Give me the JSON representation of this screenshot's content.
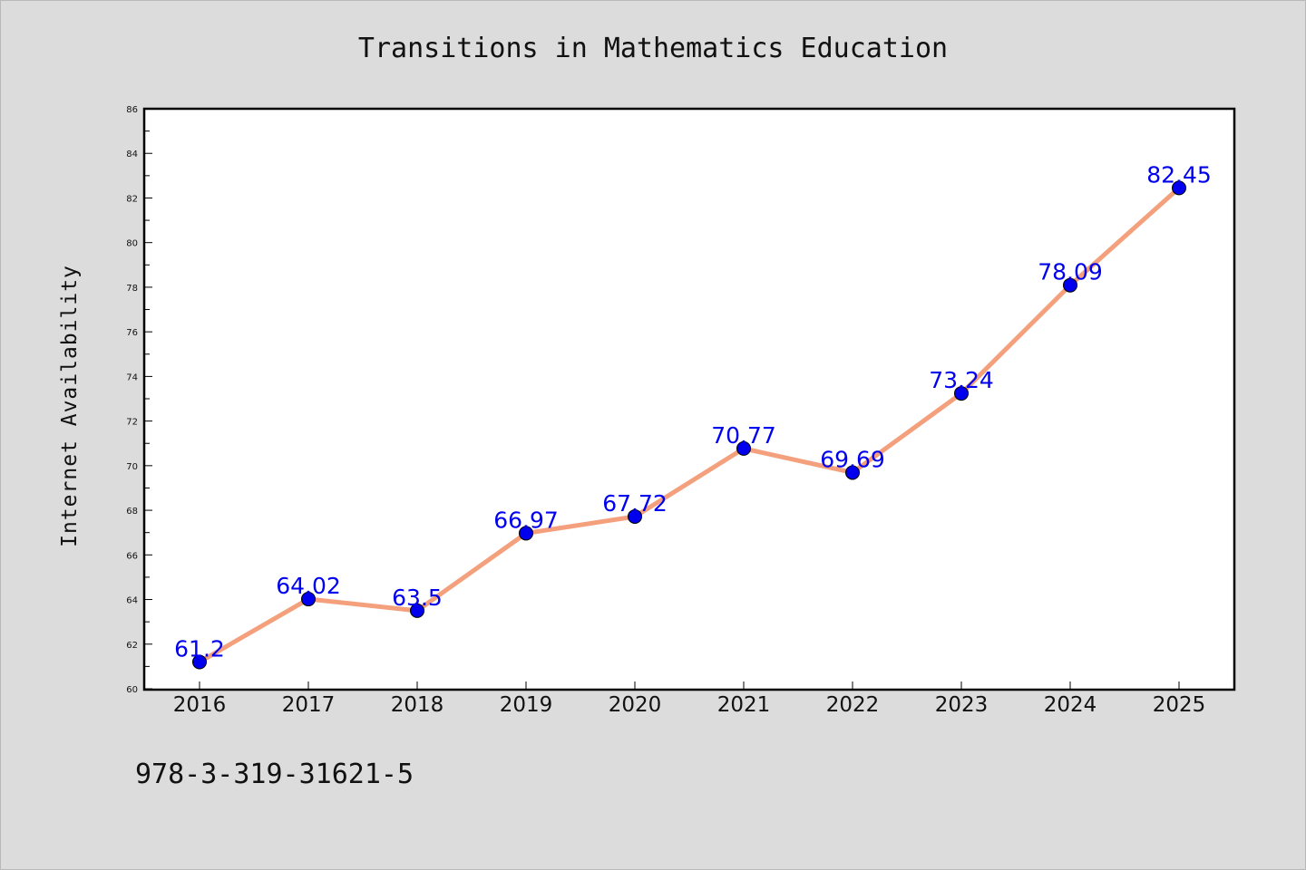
{
  "footer_text": "978-3-319-31621-5",
  "colors": {
    "line": "#f4a07c",
    "marker": "#0000ee",
    "label": "#0000ee",
    "background": "#dcdcdc",
    "plot_bg": "#ffffff"
  },
  "chart_data": {
    "type": "line",
    "title": "Transitions in Mathematics Education",
    "xlabel": "",
    "ylabel": "Internet Availability",
    "categories": [
      "2016",
      "2017",
      "2018",
      "2019",
      "2020",
      "2021",
      "2022",
      "2023",
      "2024",
      "2025"
    ],
    "series": [
      {
        "values": [
          61.2,
          64.02,
          63.5,
          66.97,
          67.72,
          70.77,
          69.69,
          73.24,
          78.09,
          82.45
        ],
        "labels": [
          "61.2",
          "64.02",
          "63.5",
          "66.97",
          "67.72",
          "70.77",
          "69.69",
          "73.24",
          "78.09",
          "82.45"
        ]
      }
    ],
    "ylim": [
      60,
      86
    ],
    "yticks": [
      "60",
      "62",
      "64",
      "66",
      "68",
      "70",
      "72",
      "74",
      "76",
      "78",
      "80",
      "82",
      "84",
      "86"
    ],
    "grid": false,
    "legend": "none"
  }
}
